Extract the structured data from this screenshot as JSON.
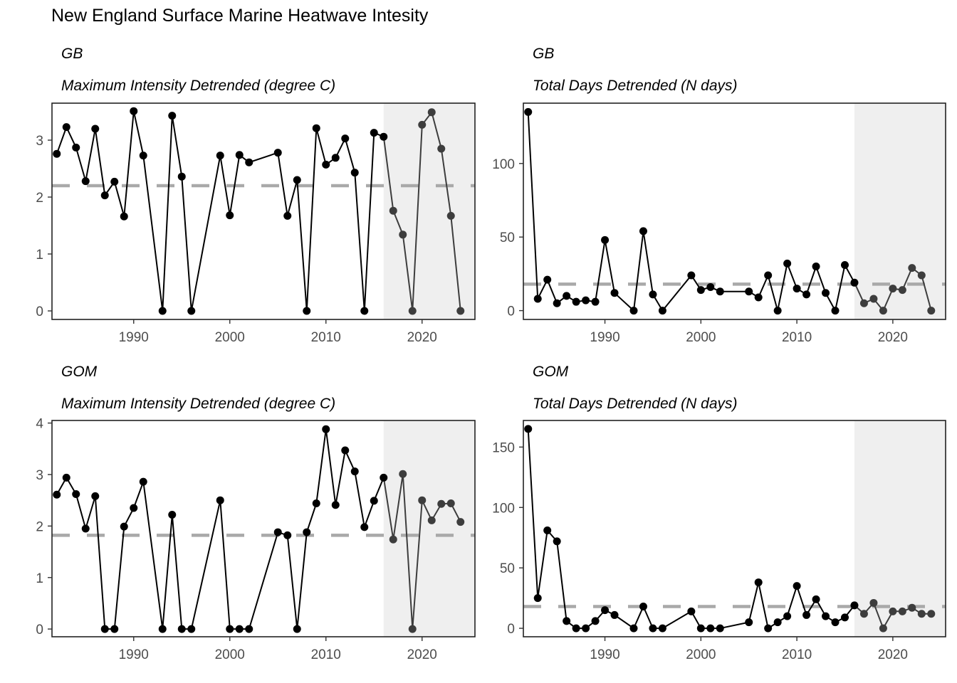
{
  "title": "New England Surface Marine Heatwave Intesity",
  "style": {
    "line_color": "#000000",
    "recent_line_color": "#3d3d3d",
    "shade_color": "#efefef",
    "mean_line_color": "#a9a9a9",
    "tick_text_color": "#4d4d4d"
  },
  "chart_data": [
    {
      "type": "line",
      "region": "GB",
      "metric": "Maximum Intensity Detrended (degree C)",
      "xlim": [
        1981.5,
        2025.5
      ],
      "ylim": [
        -0.15,
        3.65
      ],
      "x_ticks": [
        1990,
        2000,
        2010,
        2020
      ],
      "y_ticks": [
        0,
        1,
        2,
        3
      ],
      "mean": 2.2,
      "shade_from": 2016,
      "x": [
        1982,
        1983,
        1984,
        1985,
        1986,
        1987,
        1988,
        1989,
        1990,
        1991,
        1993,
        1994,
        1995,
        1996,
        1999,
        2000,
        2001,
        2002,
        2005,
        2006,
        2007,
        2008,
        2009,
        2010,
        2011,
        2012,
        2013,
        2014,
        2015,
        2016,
        2017,
        2018,
        2019,
        2020,
        2021,
        2022,
        2023,
        2024
      ],
      "y": [
        2.76,
        3.23,
        2.87,
        2.28,
        3.2,
        2.03,
        2.27,
        1.66,
        3.51,
        2.73,
        0,
        3.43,
        2.36,
        0,
        2.73,
        1.68,
        2.74,
        2.61,
        2.78,
        1.67,
        2.3,
        0,
        3.21,
        2.57,
        2.69,
        3.03,
        2.43,
        0,
        3.13,
        3.06,
        1.76,
        1.34,
        0,
        3.27,
        3.49,
        2.85,
        1.67,
        0
      ]
    },
    {
      "type": "line",
      "region": "GB",
      "metric": "Total Days Detrended (N days)",
      "xlim": [
        1981.5,
        2025.5
      ],
      "ylim": [
        -6,
        141
      ],
      "x_ticks": [
        1990,
        2000,
        2010,
        2020
      ],
      "y_ticks": [
        0,
        50,
        100
      ],
      "mean": 18,
      "shade_from": 2016,
      "x": [
        1982,
        1983,
        1984,
        1985,
        1986,
        1987,
        1988,
        1989,
        1990,
        1991,
        1993,
        1994,
        1995,
        1996,
        1999,
        2000,
        2001,
        2002,
        2005,
        2006,
        2007,
        2008,
        2009,
        2010,
        2011,
        2012,
        2013,
        2014,
        2015,
        2016,
        2017,
        2018,
        2019,
        2020,
        2021,
        2022,
        2023,
        2024
      ],
      "y": [
        135,
        8,
        21,
        5,
        10,
        6,
        7,
        6,
        48,
        12,
        0,
        54,
        11,
        0,
        24,
        14,
        16,
        13,
        13,
        9,
        24,
        0,
        32,
        15,
        11,
        30,
        12,
        0,
        31,
        19,
        5,
        8,
        0,
        15,
        14,
        29,
        24,
        0
      ]
    },
    {
      "type": "line",
      "region": "GOM",
      "metric": "Maximum Intensity Detrended (degree C)",
      "xlim": [
        1981.5,
        2025.5
      ],
      "ylim": [
        -0.15,
        4.05
      ],
      "x_ticks": [
        1990,
        2000,
        2010,
        2020
      ],
      "y_ticks": [
        0,
        1,
        2,
        3,
        4
      ],
      "mean": 1.82,
      "shade_from": 2016,
      "x": [
        1982,
        1983,
        1984,
        1985,
        1986,
        1987,
        1988,
        1989,
        1990,
        1991,
        1993,
        1994,
        1995,
        1996,
        1999,
        2000,
        2001,
        2002,
        2005,
        2006,
        2007,
        2008,
        2009,
        2010,
        2011,
        2012,
        2013,
        2014,
        2015,
        2016,
        2017,
        2018,
        2019,
        2020,
        2021,
        2022,
        2023,
        2024
      ],
      "y": [
        2.61,
        2.94,
        2.62,
        1.95,
        2.58,
        0,
        0,
        1.99,
        2.35,
        2.86,
        0,
        2.22,
        0,
        0,
        2.5,
        0,
        0,
        0,
        1.88,
        1.82,
        0,
        1.88,
        2.44,
        3.88,
        2.41,
        3.47,
        3.06,
        1.98,
        2.49,
        2.94,
        1.74,
        3.01,
        0,
        2.5,
        2.11,
        2.43,
        2.44,
        2.08
      ]
    },
    {
      "type": "line",
      "region": "GOM",
      "metric": "Total Days Detrended (N days)",
      "xlim": [
        1981.5,
        2025.5
      ],
      "ylim": [
        -7,
        172
      ],
      "x_ticks": [
        1990,
        2000,
        2010,
        2020
      ],
      "y_ticks": [
        0,
        50,
        100,
        150
      ],
      "mean": 18,
      "shade_from": 2016,
      "x": [
        1982,
        1983,
        1984,
        1985,
        1986,
        1987,
        1988,
        1989,
        1990,
        1991,
        1993,
        1994,
        1995,
        1996,
        1999,
        2000,
        2001,
        2002,
        2005,
        2006,
        2007,
        2008,
        2009,
        2010,
        2011,
        2012,
        2013,
        2014,
        2015,
        2016,
        2017,
        2018,
        2019,
        2020,
        2021,
        2022,
        2023,
        2024
      ],
      "y": [
        165,
        25,
        81,
        72,
        6,
        0,
        0,
        6,
        15,
        11,
        0,
        18,
        0,
        0,
        14,
        0,
        0,
        0,
        5,
        38,
        0,
        5,
        10,
        35,
        11,
        24,
        10,
        5,
        9,
        19,
        12,
        21,
        0,
        14,
        14,
        17,
        12,
        12
      ]
    }
  ]
}
